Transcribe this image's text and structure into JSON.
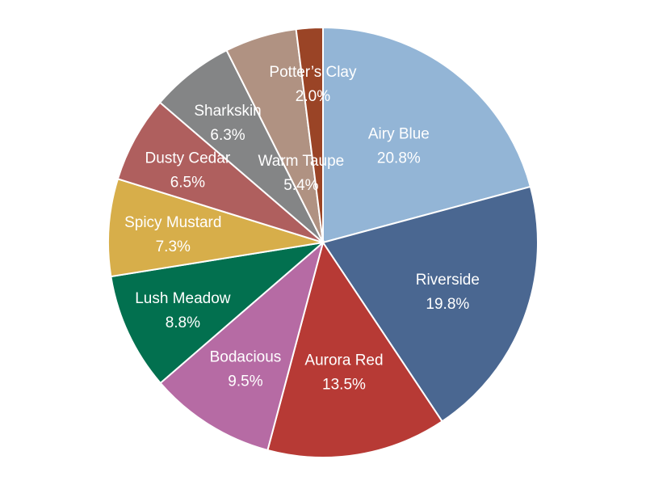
{
  "chart_data": {
    "type": "pie",
    "title": "",
    "start_angle_deg": 0,
    "direction": "clockwise",
    "labels_inside": true,
    "slices": [
      {
        "label": "Airy Blue",
        "value": 20.8,
        "display": "20.8%",
        "color": "#93b5d6"
      },
      {
        "label": "Riverside",
        "value": 19.8,
        "display": "19.8%",
        "color": "#4a6791"
      },
      {
        "label": "Aurora Red",
        "value": 13.5,
        "display": "13.5%",
        "color": "#b73a35"
      },
      {
        "label": "Bodacious",
        "value": 9.5,
        "display": "9.5%",
        "color": "#b66ba4"
      },
      {
        "label": "Lush Meadow",
        "value": 8.8,
        "display": "8.8%",
        "color": "#02704f"
      },
      {
        "label": "Spicy Mustard",
        "value": 7.3,
        "display": "7.3%",
        "color": "#d7ae4a"
      },
      {
        "label": "Dusty Cedar",
        "value": 6.5,
        "display": "6.5%",
        "color": "#af5f5e"
      },
      {
        "label": "Sharkskin",
        "value": 6.3,
        "display": "6.3%",
        "color": "#848586"
      },
      {
        "label": "Warm Taupe",
        "value": 5.4,
        "display": "5.4%",
        "color": "#b09282"
      },
      {
        "label": "Potter’s Clay",
        "value": 2.0,
        "display": "2.0%",
        "color": "#9a4426"
      }
    ]
  }
}
